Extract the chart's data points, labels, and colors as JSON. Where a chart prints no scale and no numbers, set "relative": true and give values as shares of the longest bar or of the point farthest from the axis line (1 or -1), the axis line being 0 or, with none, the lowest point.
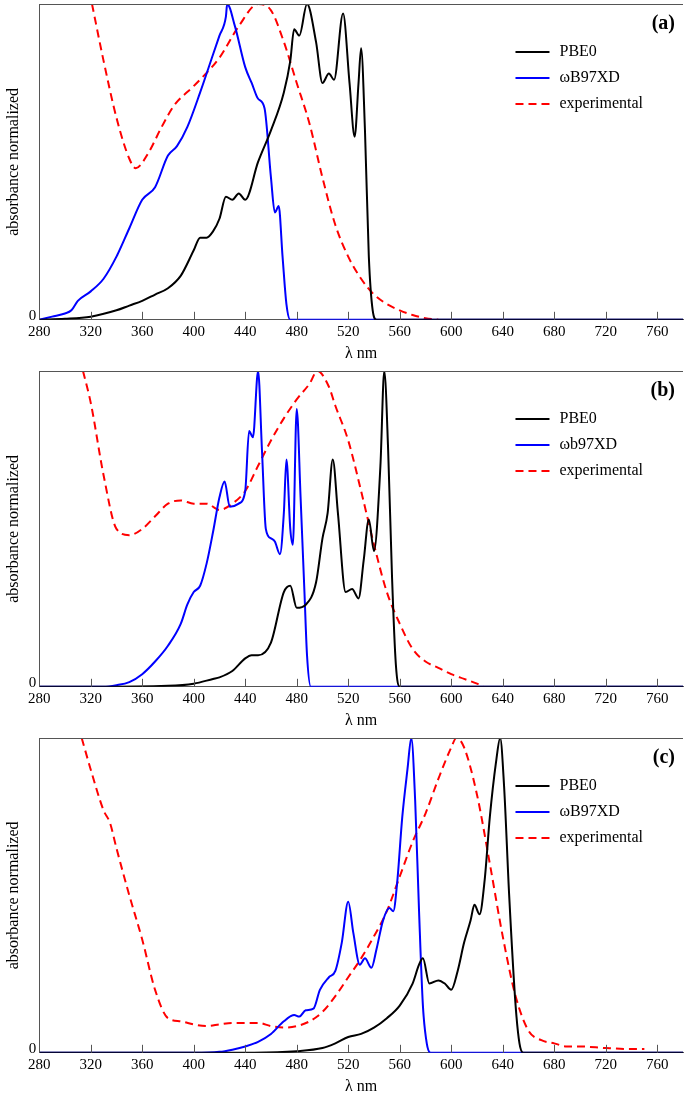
{
  "chart_data": [
    {
      "type": "line",
      "xlabel": "λ nm",
      "ylabel": "absorbance normalized",
      "annotations": [
        "(a)",
        "0"
      ],
      "relative": true,
      "xlim": [
        280,
        780
      ],
      "xticks": [
        280,
        320,
        360,
        400,
        440,
        480,
        520,
        560,
        600,
        640,
        680,
        720,
        760
      ],
      "grid": false,
      "legend": "top right",
      "series": [
        {
          "name": "PBE0",
          "color": "#000000",
          "x": [
            280,
            300,
            320,
            340,
            350,
            360,
            370,
            380,
            390,
            400,
            405,
            410,
            415,
            420,
            425,
            430,
            435,
            440,
            450,
            460,
            470,
            475,
            478,
            482,
            488,
            495,
            500,
            505,
            509,
            516,
            521,
            525,
            528,
            530,
            533,
            536,
            539,
            542,
            780
          ],
          "values": [
            0,
            0.003,
            0.01,
            0.03,
            0.045,
            0.06,
            0.08,
            0.1,
            0.14,
            0.22,
            0.26,
            0.26,
            0.28,
            0.32,
            0.39,
            0.38,
            0.4,
            0.38,
            0.5,
            0.6,
            0.72,
            0.82,
            0.92,
            0.9,
            1,
            0.88,
            0.75,
            0.78,
            0.76,
            0.97,
            0.75,
            0.58,
            0.75,
            0.86,
            0.6,
            0.2,
            0.03,
            0,
            0
          ]
        },
        {
          "name": "ωB97XD",
          "color": "#0000ff",
          "x": [
            280,
            290,
            300,
            305,
            310,
            320,
            330,
            340,
            350,
            360,
            370,
            380,
            387,
            395,
            405,
            415,
            420,
            425,
            426,
            432,
            440,
            445,
            450,
            455,
            460,
            463,
            466,
            469,
            472,
            475,
            780
          ],
          "values": [
            0,
            0.01,
            0.02,
            0.03,
            0.06,
            0.09,
            0.13,
            0.2,
            0.29,
            0.38,
            0.42,
            0.52,
            0.55,
            0.61,
            0.72,
            0.84,
            0.9,
            0.96,
            1,
            0.93,
            0.8,
            0.75,
            0.7,
            0.67,
            0.45,
            0.34,
            0.36,
            0.2,
            0.05,
            0,
            0
          ]
        },
        {
          "name": "experimental",
          "color": "#ff0000",
          "line_style": "dashed",
          "x": [
            321,
            330,
            340,
            350,
            355,
            365,
            375,
            385,
            400,
            420,
            435,
            450,
            460,
            470,
            480,
            490,
            500,
            510,
            520,
            530,
            540,
            550,
            560,
            570,
            580,
            590
          ],
          "values": [
            1,
            0.82,
            0.64,
            0.51,
            0.48,
            0.53,
            0.61,
            0.68,
            0.74,
            0.83,
            0.93,
            1,
            0.98,
            0.88,
            0.75,
            0.62,
            0.45,
            0.3,
            0.2,
            0.13,
            0.08,
            0.05,
            0.03,
            0.015,
            0.005,
            0
          ]
        }
      ]
    },
    {
      "type": "line",
      "xlabel": "λ nm",
      "ylabel": "absorbance normalized",
      "annotations": [
        "(b)",
        "0"
      ],
      "relative": true,
      "xlim": [
        280,
        780
      ],
      "xticks": [
        280,
        320,
        360,
        400,
        440,
        480,
        520,
        560,
        600,
        640,
        680,
        720,
        760
      ],
      "grid": false,
      "legend": "top right",
      "series": [
        {
          "name": "PBE0",
          "color": "#000000",
          "x": [
            280,
            320,
            380,
            400,
            415,
            420,
            430,
            440,
            445,
            450,
            460,
            470,
            475,
            480,
            487,
            495,
            500,
            504,
            508,
            512,
            518,
            523,
            528,
            532,
            536,
            540,
            545,
            548,
            551,
            554,
            557,
            560,
            780
          ],
          "values": [
            0,
            0,
            0.003,
            0.01,
            0.025,
            0.03,
            0.05,
            0.09,
            0.1,
            0.1,
            0.14,
            0.3,
            0.32,
            0.25,
            0.26,
            0.33,
            0.47,
            0.55,
            0.72,
            0.55,
            0.3,
            0.31,
            0.28,
            0.4,
            0.53,
            0.43,
            0.7,
            1,
            0.75,
            0.35,
            0.07,
            0,
            0
          ]
        },
        {
          "name": "ωb97XD",
          "color": "#0000ff",
          "x": [
            280,
            330,
            340,
            350,
            360,
            370,
            380,
            390,
            395,
            400,
            405,
            410,
            415,
            420,
            424,
            428,
            435,
            440,
            443,
            446,
            450,
            453,
            456,
            460,
            463,
            467,
            470,
            472,
            475,
            477,
            480,
            483,
            486,
            488,
            491,
            780
          ],
          "values": [
            0,
            0,
            0.005,
            0.015,
            0.04,
            0.08,
            0.13,
            0.2,
            0.26,
            0.3,
            0.32,
            0.39,
            0.49,
            0.6,
            0.65,
            0.57,
            0.58,
            0.62,
            0.81,
            0.79,
            1,
            0.75,
            0.5,
            0.47,
            0.46,
            0.42,
            0.55,
            0.72,
            0.5,
            0.45,
            0.88,
            0.6,
            0.3,
            0.1,
            0,
            0
          ]
        },
        {
          "name": "experimental",
          "color": "#ff0000",
          "line_style": "dashed",
          "x": [
            314,
            320,
            330,
            340,
            350,
            360,
            370,
            380,
            390,
            400,
            410,
            420,
            430,
            440,
            450,
            460,
            470,
            480,
            490,
            496,
            505,
            510,
            520,
            530,
            540,
            550,
            560,
            570,
            580,
            590,
            600,
            610,
            620,
            625
          ],
          "values": [
            1,
            0.9,
            0.67,
            0.5,
            0.48,
            0.5,
            0.54,
            0.58,
            0.59,
            0.58,
            0.58,
            0.56,
            0.58,
            0.62,
            0.7,
            0.78,
            0.85,
            0.91,
            0.96,
            1,
            0.95,
            0.89,
            0.78,
            0.62,
            0.45,
            0.3,
            0.2,
            0.12,
            0.08,
            0.06,
            0.04,
            0.025,
            0.01,
            0
          ]
        }
      ]
    },
    {
      "type": "line",
      "xlabel": "λ nm",
      "ylabel": "absorbance normalized",
      "annotations": [
        "(c)",
        "0"
      ],
      "relative": true,
      "xlim": [
        280,
        780
      ],
      "xticks": [
        280,
        320,
        360,
        400,
        440,
        480,
        520,
        560,
        600,
        640,
        680,
        720,
        760
      ],
      "grid": false,
      "legend": "top right",
      "series": [
        {
          "name": "PBE0",
          "color": "#000000",
          "x": [
            280,
            440,
            480,
            500,
            510,
            520,
            530,
            540,
            550,
            560,
            570,
            575,
            578,
            583,
            590,
            595,
            600,
            605,
            610,
            615,
            618,
            622,
            626,
            630,
            635,
            638,
            641,
            645,
            650,
            653,
            656,
            780
          ],
          "values": [
            0,
            0,
            0.005,
            0.015,
            0.03,
            0.05,
            0.06,
            0.08,
            0.11,
            0.15,
            0.22,
            0.28,
            0.3,
            0.22,
            0.23,
            0.22,
            0.2,
            0.26,
            0.35,
            0.42,
            0.47,
            0.44,
            0.55,
            0.75,
            0.93,
            1,
            0.85,
            0.5,
            0.15,
            0.03,
            0,
            0
          ]
        },
        {
          "name": "ωB97XD",
          "color": "#0000ff",
          "x": [
            280,
            400,
            420,
            430,
            440,
            450,
            460,
            470,
            478,
            482,
            487,
            493,
            498,
            505,
            510,
            515,
            520,
            524,
            529,
            533,
            538,
            542,
            547,
            552,
            555,
            558,
            562,
            566,
            569,
            572,
            575,
            578,
            581,
            584,
            780
          ],
          "values": [
            0,
            0,
            0.003,
            0.01,
            0.02,
            0.035,
            0.06,
            0.1,
            0.12,
            0.115,
            0.135,
            0.14,
            0.2,
            0.24,
            0.26,
            0.35,
            0.48,
            0.38,
            0.28,
            0.3,
            0.27,
            0.33,
            0.42,
            0.46,
            0.45,
            0.54,
            0.75,
            0.9,
            1,
            0.8,
            0.45,
            0.15,
            0.03,
            0,
            0
          ]
        },
        {
          "name": "experimental",
          "color": "#ff0000",
          "line_style": "dashed",
          "x": [
            313,
            320,
            330,
            335,
            340,
            350,
            360,
            370,
            380,
            390,
            400,
            410,
            420,
            430,
            440,
            450,
            460,
            470,
            480,
            490,
            500,
            510,
            520,
            530,
            540,
            550,
            560,
            570,
            580,
            590,
            600,
            604,
            610,
            620,
            630,
            640,
            650,
            660,
            670,
            680,
            690,
            700,
            720,
            740,
            750
          ],
          "values": [
            1,
            0.9,
            0.77,
            0.73,
            0.65,
            0.5,
            0.36,
            0.2,
            0.11,
            0.1,
            0.09,
            0.085,
            0.09,
            0.095,
            0.095,
            0.095,
            0.085,
            0.08,
            0.085,
            0.1,
            0.13,
            0.18,
            0.24,
            0.3,
            0.37,
            0.45,
            0.56,
            0.67,
            0.76,
            0.87,
            0.97,
            1,
            0.97,
            0.82,
            0.6,
            0.37,
            0.18,
            0.07,
            0.04,
            0.03,
            0.02,
            0.02,
            0.015,
            0.012,
            0.012
          ]
        }
      ]
    }
  ]
}
